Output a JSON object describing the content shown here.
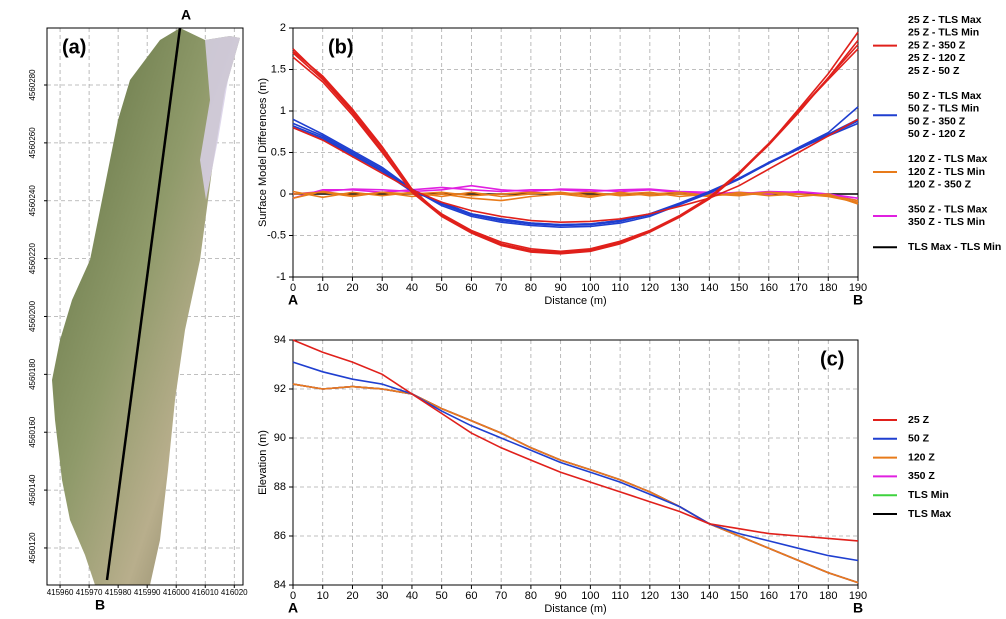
{
  "chart_data": [
    {
      "type": "map",
      "panel_label": "(a)",
      "start_label": "A",
      "end_label": "B",
      "xlim": [
        415955.5,
        416023
      ],
      "ylim": [
        4560107.2,
        4560299.7
      ],
      "xticks": [
        415960,
        415970,
        415980,
        415990,
        416000,
        416010,
        416020
      ],
      "yticks": [
        4560120,
        4560140,
        4560160,
        4560180,
        4560200,
        4560220,
        4560240,
        4560260,
        4560280
      ],
      "grid": true
    },
    {
      "type": "line",
      "panel_label": "(b)",
      "start_label": "A",
      "end_label": "B",
      "x_label": "Distance (m)",
      "y_label": "Surface Model Differences (m)",
      "x": [
        0,
        10,
        20,
        30,
        40,
        50,
        60,
        70,
        80,
        90,
        100,
        110,
        120,
        130,
        140,
        150,
        160,
        170,
        180,
        190
      ],
      "xlim": [
        0,
        190
      ],
      "ylim": [
        -1,
        2
      ],
      "xticks": [
        0,
        10,
        20,
        30,
        40,
        50,
        60,
        70,
        80,
        90,
        100,
        110,
        120,
        130,
        140,
        150,
        160,
        170,
        180,
        190
      ],
      "yticks": [
        -1,
        -0.5,
        0,
        0.5,
        1,
        1.5,
        2
      ],
      "grid": true,
      "series": [
        {
          "name": "25 Z - TLS Max",
          "color": "#e0201b",
          "values": [
            1.75,
            1.4,
            1.0,
            0.55,
            0.05,
            -0.25,
            -0.45,
            -0.6,
            -0.68,
            -0.7,
            -0.67,
            -0.58,
            -0.45,
            -0.27,
            -0.05,
            0.25,
            0.6,
            1.0,
            1.4,
            1.85
          ]
        },
        {
          "name": "25 Z - TLS Min",
          "color": "#e0201b",
          "values": [
            1.7,
            1.38,
            0.98,
            0.52,
            0.02,
            -0.27,
            -0.47,
            -0.62,
            -0.7,
            -0.72,
            -0.69,
            -0.6,
            -0.46,
            -0.28,
            -0.06,
            0.24,
            0.6,
            1.02,
            1.45,
            1.95
          ]
        },
        {
          "name": "25 Z - 350 Z",
          "color": "#e0201b",
          "values": [
            1.65,
            1.35,
            0.95,
            0.5,
            0.03,
            -0.24,
            -0.44,
            -0.58,
            -0.66,
            -0.69,
            -0.66,
            -0.57,
            -0.44,
            -0.26,
            -0.04,
            0.26,
            0.61,
            1.0,
            1.38,
            1.75
          ]
        },
        {
          "name": "25 Z - 120 Z",
          "color": "#e0201b",
          "values": [
            1.72,
            1.42,
            1.02,
            0.57,
            0.06,
            -0.26,
            -0.46,
            -0.61,
            -0.69,
            -0.71,
            -0.68,
            -0.59,
            -0.45,
            -0.27,
            -0.05,
            0.25,
            0.59,
            0.98,
            1.4,
            1.8
          ]
        },
        {
          "name": "25 Z - 50 Z",
          "color": "#e0201b",
          "values": [
            0.8,
            0.65,
            0.45,
            0.25,
            0.05,
            -0.1,
            -0.2,
            -0.27,
            -0.32,
            -0.34,
            -0.33,
            -0.3,
            -0.24,
            -0.15,
            -0.05,
            0.1,
            0.3,
            0.5,
            0.7,
            0.9
          ]
        },
        {
          "name": "50 Z - TLS Max",
          "color": "#1f3fd0",
          "values": [
            0.85,
            0.7,
            0.5,
            0.3,
            0.05,
            -0.12,
            -0.25,
            -0.32,
            -0.36,
            -0.38,
            -0.37,
            -0.33,
            -0.25,
            -0.12,
            0.02,
            0.18,
            0.38,
            0.55,
            0.72,
            0.9
          ]
        },
        {
          "name": "50 Z - TLS Min",
          "color": "#1f3fd0",
          "values": [
            0.9,
            0.72,
            0.52,
            0.32,
            0.06,
            -0.14,
            -0.27,
            -0.34,
            -0.38,
            -0.4,
            -0.39,
            -0.35,
            -0.27,
            -0.13,
            0.01,
            0.18,
            0.37,
            0.56,
            0.74,
            1.05
          ]
        },
        {
          "name": "50 Z - 350 Z",
          "color": "#1f3fd0",
          "values": [
            0.8,
            0.66,
            0.47,
            0.27,
            0.03,
            -0.1,
            -0.24,
            -0.3,
            -0.35,
            -0.37,
            -0.36,
            -0.32,
            -0.24,
            -0.11,
            0.03,
            0.19,
            0.38,
            0.55,
            0.7,
            0.85
          ]
        },
        {
          "name": "50 Z - 120 Z",
          "color": "#1f3fd0",
          "values": [
            0.82,
            0.68,
            0.48,
            0.28,
            0.04,
            -0.11,
            -0.24,
            -0.31,
            -0.35,
            -0.37,
            -0.36,
            -0.32,
            -0.24,
            -0.12,
            0.02,
            0.18,
            0.37,
            0.54,
            0.71,
            0.88
          ]
        },
        {
          "name": "120 Z - TLS Max",
          "color": "#e87b1a",
          "values": [
            -0.05,
            0.03,
            -0.02,
            0.02,
            -0.03,
            0.0,
            -0.05,
            -0.08,
            -0.03,
            0.0,
            -0.04,
            0.02,
            -0.02,
            0.0,
            -0.03,
            0.02,
            -0.02,
            0.0,
            -0.03,
            -0.1
          ]
        },
        {
          "name": "120 Z - TLS Min",
          "color": "#e87b1a",
          "values": [
            0.03,
            -0.04,
            0.02,
            -0.02,
            0.02,
            -0.03,
            0.02,
            -0.03,
            0.0,
            0.02,
            -0.02,
            0.0,
            0.02,
            -0.03,
            0.0,
            -0.02,
            0.02,
            -0.03,
            0.0,
            -0.12
          ]
        },
        {
          "name": "120 Z - 350 Z",
          "color": "#e87b1a",
          "values": [
            0.0,
            0.02,
            -0.03,
            0.02,
            0.0,
            0.02,
            -0.02,
            0.0,
            0.02,
            0.0,
            0.02,
            -0.02,
            0.0,
            0.02,
            -0.02,
            0.0,
            0.02,
            0.0,
            -0.02,
            -0.08
          ]
        },
        {
          "name": "350 Z - TLS Max",
          "color": "#e020e0",
          "values": [
            -0.05,
            0.05,
            0.05,
            0.02,
            0.05,
            0.08,
            0.05,
            0.03,
            0.05,
            0.05,
            0.03,
            0.05,
            0.06,
            0.03,
            0.02,
            0.0,
            0.03,
            0.02,
            0.0,
            -0.05
          ]
        },
        {
          "name": "350 Z - TLS Min",
          "color": "#e020e0",
          "values": [
            0.0,
            0.03,
            0.06,
            0.05,
            0.03,
            0.05,
            0.1,
            0.05,
            0.03,
            0.06,
            0.05,
            0.03,
            0.05,
            0.02,
            0.0,
            0.02,
            0.0,
            0.03,
            0.0,
            -0.08
          ]
        },
        {
          "name": "TLS Max - TLS Min",
          "color": "#000000",
          "values": [
            0,
            0,
            0,
            0,
            0,
            0,
            0,
            0,
            0,
            0,
            0,
            0,
            0,
            0,
            0,
            0,
            0,
            0,
            0,
            0
          ]
        }
      ]
    },
    {
      "type": "line",
      "panel_label": "(c)",
      "start_label": "A",
      "end_label": "B",
      "x_label": "Distance (m)",
      "y_label": "Elevation (m)",
      "x": [
        0,
        10,
        20,
        30,
        40,
        50,
        60,
        70,
        80,
        90,
        100,
        110,
        120,
        130,
        140,
        150,
        160,
        170,
        180,
        190
      ],
      "xlim": [
        0,
        190
      ],
      "ylim": [
        84,
        94
      ],
      "xticks": [
        0,
        10,
        20,
        30,
        40,
        50,
        60,
        70,
        80,
        90,
        100,
        110,
        120,
        130,
        140,
        150,
        160,
        170,
        180,
        190
      ],
      "yticks": [
        84,
        86,
        88,
        90,
        92,
        94
      ],
      "grid": true,
      "series": [
        {
          "name": "25 Z",
          "color": "#e0201b",
          "values": [
            94,
            93.5,
            93.1,
            92.6,
            91.8,
            91.0,
            90.2,
            89.6,
            89.1,
            88.6,
            88.2,
            87.8,
            87.4,
            87.0,
            86.5,
            86.3,
            86.1,
            86.0,
            85.9,
            85.8
          ]
        },
        {
          "name": "50 Z",
          "color": "#1f3fd0",
          "values": [
            93.1,
            92.7,
            92.4,
            92.2,
            91.8,
            91.1,
            90.5,
            90.0,
            89.5,
            89.0,
            88.6,
            88.2,
            87.7,
            87.2,
            86.5,
            86.1,
            85.8,
            85.5,
            85.2,
            85.0
          ]
        },
        {
          "name": "120 Z",
          "color": "#e87b1a",
          "values": [
            92.2,
            92.0,
            92.1,
            92.0,
            91.8,
            91.2,
            90.7,
            90.2,
            89.6,
            89.1,
            88.7,
            88.3,
            87.8,
            87.2,
            86.5,
            86.0,
            85.5,
            85.0,
            84.5,
            84.1
          ]
        },
        {
          "name": "350 Z",
          "color": "#e020e0",
          "values": [
            92.2,
            92.0,
            92.1,
            92.0,
            91.8,
            91.2,
            90.7,
            90.2,
            89.6,
            89.1,
            88.7,
            88.3,
            87.8,
            87.2,
            86.5,
            86.0,
            85.5,
            85.0,
            84.5,
            84.1
          ]
        },
        {
          "name": "TLS Min",
          "color": "#3ed23e",
          "values": [
            92.2,
            92.0,
            92.1,
            92.0,
            91.8,
            91.2,
            90.7,
            90.2,
            89.6,
            89.1,
            88.7,
            88.3,
            87.8,
            87.2,
            86.5,
            86.0,
            85.5,
            85.0,
            84.5,
            84.1
          ]
        },
        {
          "name": "TLS Max",
          "color": "#000000",
          "values": [
            92.2,
            92.0,
            92.1,
            92.0,
            91.8,
            91.2,
            90.7,
            90.2,
            89.6,
            89.1,
            88.7,
            88.3,
            87.8,
            87.2,
            86.5,
            86.0,
            85.5,
            85.0,
            84.5,
            84.1
          ]
        }
      ]
    }
  ]
}
